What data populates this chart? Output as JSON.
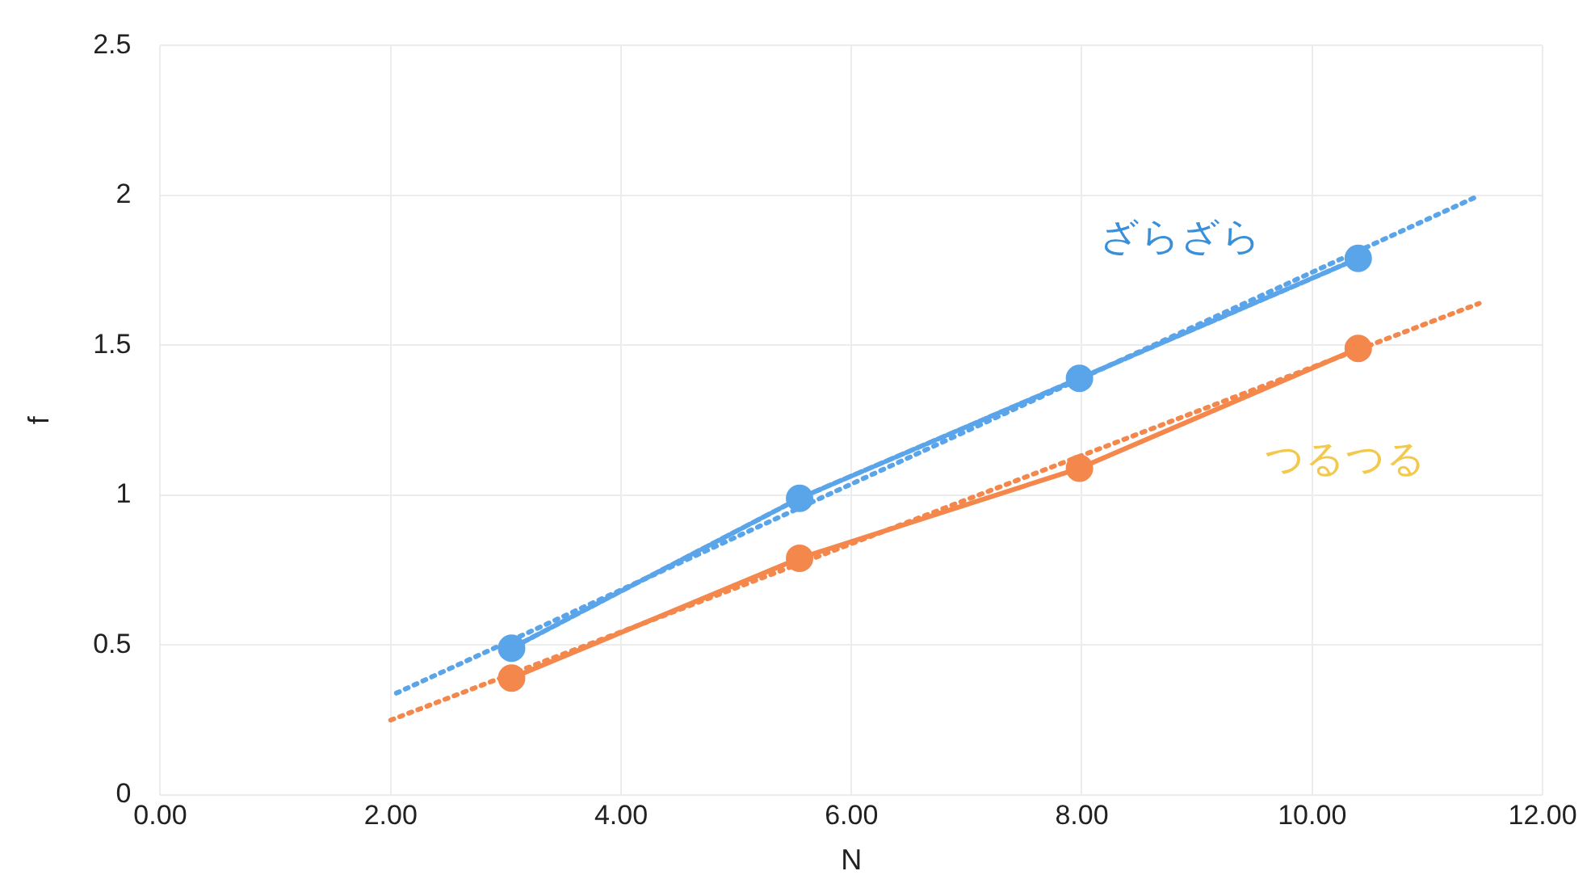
{
  "chart_data": {
    "type": "line",
    "xlabel": "N",
    "ylabel": "f",
    "xlim": [
      0,
      12
    ],
    "xticks": [
      {
        "value": 0,
        "label": "0.00"
      },
      {
        "value": 2,
        "label": "2.00"
      },
      {
        "value": 4,
        "label": "4.00"
      },
      {
        "value": 6,
        "label": "6.00"
      },
      {
        "value": 8,
        "label": "8.00"
      },
      {
        "value": 10,
        "label": "10.00"
      },
      {
        "value": 12,
        "label": "12.00"
      }
    ],
    "ylim": [
      0,
      2.5
    ],
    "yticks": [
      0,
      0.5,
      1,
      1.5,
      2,
      2.5
    ],
    "grid": true,
    "legend": false,
    "marker": "circle",
    "series": [
      {
        "name": "ざらざら",
        "color": "#5aa5ea",
        "x": [
          3.05,
          5.55,
          7.98,
          10.4
        ],
        "values": [
          0.49,
          0.99,
          1.39,
          1.79
        ],
        "line_style": "dashed"
      },
      {
        "name": "つるつる",
        "color": "#f4874b",
        "x": [
          3.05,
          5.55,
          7.98,
          10.4
        ],
        "values": [
          0.39,
          0.79,
          1.09,
          1.49
        ],
        "line_style": "solid"
      },
      {
        "color": "#5aa5ea",
        "x": [
          2.05,
          11.45
        ],
        "values": [
          0.34,
          2.0
        ],
        "line_style": "dotted",
        "marker": "none"
      },
      {
        "color": "#f4874b",
        "x": [
          2.0,
          11.45
        ],
        "values": [
          0.25,
          1.64
        ],
        "line_style": "dotted",
        "marker": "none"
      }
    ]
  }
}
